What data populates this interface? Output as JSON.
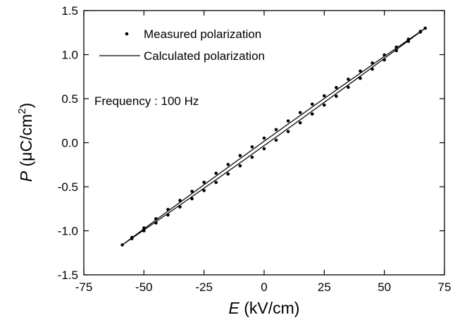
{
  "chart_data": {
    "type": "scatter",
    "xlabel_parts": [
      "E",
      " (kV/cm)"
    ],
    "ylabel_parts": [
      "P",
      " (μC/cm",
      "2",
      ")"
    ],
    "annotation": "Frequency : 100 Hz",
    "xlim": [
      -75,
      75
    ],
    "xticks": [
      -75,
      -50,
      -25,
      0,
      25,
      50,
      75
    ],
    "ylim": [
      -1.5,
      1.5
    ],
    "yticks": [
      -1.5,
      {
        "value": -1,
        "label": "-1.0"
      },
      -0.5,
      {
        "value": 0,
        "label": "0.0"
      },
      0.5,
      {
        "value": 1,
        "label": "1.0"
      },
      1.5
    ],
    "legend": "upper left",
    "series": [
      {
        "name": "Measured polarization",
        "mode": "markers",
        "color": "#000000",
        "x": [
          -59,
          -55,
          -50,
          -45,
          -40,
          -35,
          -30,
          -25,
          -20,
          -15,
          -10,
          -5,
          0,
          5,
          10,
          15,
          20,
          25,
          30,
          35,
          40,
          45,
          50,
          55,
          60,
          65,
          67,
          65,
          60,
          55,
          50,
          45,
          40,
          35,
          30,
          25,
          20,
          15,
          10,
          5,
          0,
          -5,
          -10,
          -15,
          -20,
          -25,
          -30,
          -35,
          -40,
          -45,
          -50,
          -55
        ],
        "values": [
          -1.16,
          -1.089,
          -1.0,
          -0.911,
          -0.82,
          -0.729,
          -0.636,
          -0.543,
          -0.451,
          -0.355,
          -0.262,
          -0.165,
          -0.068,
          0.029,
          0.127,
          0.226,
          0.326,
          0.427,
          0.528,
          0.629,
          0.731,
          0.835,
          0.94,
          1.045,
          1.151,
          1.256,
          1.3,
          1.264,
          1.175,
          1.085,
          0.996,
          0.905,
          0.813,
          0.721,
          0.626,
          0.533,
          0.438,
          0.342,
          0.247,
          0.149,
          0.052,
          -0.047,
          -0.146,
          -0.247,
          -0.347,
          -0.449,
          -0.552,
          -0.655,
          -0.758,
          -0.863,
          -0.968,
          -1.075
        ]
      },
      {
        "name": "Calculated polarization",
        "mode": "line",
        "color": "#000000",
        "x": [
          -59,
          -55,
          -50,
          -45,
          -40,
          -35,
          -30,
          -25,
          -20,
          -15,
          -10,
          -5,
          0,
          5,
          10,
          15,
          20,
          25,
          30,
          35,
          40,
          45,
          50,
          55,
          60,
          65,
          67,
          65,
          60,
          55,
          50,
          45,
          40,
          35,
          30,
          25,
          20,
          15,
          10,
          5,
          0,
          -5,
          -10,
          -15,
          -20,
          -25,
          -30,
          -35,
          -40,
          -45,
          -50,
          -55,
          -59
        ],
        "values": [
          -1.16,
          -1.085,
          -0.991,
          -0.897,
          -0.802,
          -0.708,
          -0.612,
          -0.516,
          -0.421,
          -0.324,
          -0.228,
          -0.131,
          -0.033,
          0.064,
          0.162,
          0.26,
          0.359,
          0.458,
          0.557,
          0.656,
          0.755,
          0.856,
          0.957,
          1.057,
          1.158,
          1.259,
          1.3,
          1.262,
          1.168,
          1.074,
          0.98,
          0.885,
          0.789,
          0.694,
          0.598,
          0.502,
          0.406,
          0.308,
          0.212,
          0.114,
          0.017,
          -0.082,
          -0.18,
          -0.279,
          -0.378,
          -0.477,
          -0.577,
          -0.677,
          -0.776,
          -0.877,
          -0.978,
          -1.079,
          -1.16
        ]
      }
    ]
  }
}
